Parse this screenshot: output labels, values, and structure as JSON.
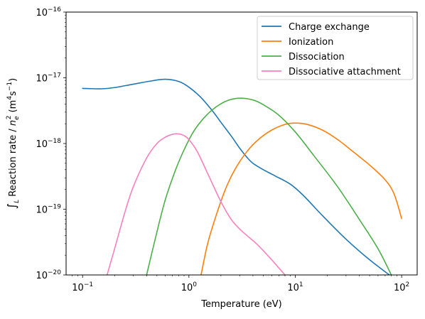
{
  "chart_data": {
    "type": "line",
    "title": "",
    "xlabel": "Temperature (eV)",
    "ylabel": {
      "integral": "∫",
      "subscript": "L",
      "text1": " Reaction rate / ",
      "n": "n",
      "n_sub": "e",
      "n_sup": "2",
      "text2": " (m",
      "m_sup": "4",
      "s": "s",
      "s_sup": "−1",
      "close": ")"
    },
    "xscale": "log",
    "yscale": "log",
    "xlim": [
      0.07,
      140
    ],
    "ylim": [
      1e-20,
      1e-16
    ],
    "grid": false,
    "legend_position": "top-right",
    "xticks": [
      {
        "value": 0.1,
        "base": "10",
        "exp": "−1"
      },
      {
        "value": 1,
        "base": "10",
        "exp": "0"
      },
      {
        "value": 10,
        "base": "10",
        "exp": "1"
      },
      {
        "value": 100,
        "base": "10",
        "exp": "2"
      }
    ],
    "yticks": [
      {
        "value": 1e-20,
        "base": "10",
        "exp": "−20"
      },
      {
        "value": 1e-19,
        "base": "10",
        "exp": "−19"
      },
      {
        "value": 1e-18,
        "base": "10",
        "exp": "−18"
      },
      {
        "value": 1e-17,
        "base": "10",
        "exp": "−17"
      },
      {
        "value": 1e-16,
        "base": "10",
        "exp": "−16"
      }
    ],
    "series": [
      {
        "name": "Charge exchange",
        "color": "#1f77b4",
        "x": [
          0.1,
          0.15,
          0.2,
          0.3,
          0.45,
          0.6,
          0.8,
          1.0,
          1.3,
          1.7,
          2.0,
          2.5,
          3.0,
          3.5,
          4.0,
          5.0,
          6.5,
          9.0,
          12.0,
          18.0,
          30.0,
          50.0,
          80.0
        ],
        "y": [
          6.9e-18,
          6.8e-18,
          7.1e-18,
          8e-18,
          9e-18,
          9.5e-18,
          8.8e-18,
          7.2e-18,
          5e-18,
          3e-18,
          2.1e-18,
          1.3e-18,
          8.5e-19,
          6.2e-19,
          5e-19,
          4e-19,
          3.2e-19,
          2.4e-19,
          1.6e-19,
          8e-20,
          3.5e-20,
          1.7e-20,
          9.5e-21
        ]
      },
      {
        "name": "Ionization",
        "color": "#ff7f0e",
        "x": [
          1.3,
          1.5,
          1.8,
          2.2,
          2.7,
          3.5,
          4.5,
          6.0,
          8.0,
          10.0,
          13.0,
          18.0,
          25.0,
          35.0,
          50.0,
          70.0,
          85.0,
          100.0
        ],
        "y": [
          1e-20,
          3e-20,
          8e-20,
          2e-19,
          4e-19,
          7.5e-19,
          1.15e-18,
          1.6e-18,
          1.95e-18,
          2.05e-18,
          1.95e-18,
          1.6e-18,
          1.15e-18,
          7.5e-19,
          4.7e-19,
          2.8e-19,
          1.7e-19,
          7.2e-20
        ]
      },
      {
        "name": "Dissociation",
        "color": "#4daf4a",
        "x": [
          0.4,
          0.5,
          0.6,
          0.75,
          0.9,
          1.1,
          1.4,
          1.8,
          2.3,
          3.0,
          4.0,
          5.0,
          7.0,
          10.0,
          15.0,
          25.0,
          40.0,
          60.0,
          80.0
        ],
        "y": [
          1e-20,
          4.5e-20,
          1.4e-19,
          4e-19,
          8e-19,
          1.5e-18,
          2.5e-18,
          3.6e-18,
          4.5e-18,
          4.9e-18,
          4.6e-18,
          3.9e-18,
          2.7e-18,
          1.5e-18,
          6.5e-19,
          2.2e-19,
          7e-20,
          2.5e-20,
          1e-20
        ]
      },
      {
        "name": "Dissociative attachment",
        "color": "#f781bf",
        "x": [
          0.17,
          0.2,
          0.25,
          0.3,
          0.4,
          0.5,
          0.6,
          0.7,
          0.8,
          0.9,
          1.0,
          1.2,
          1.5,
          2.0,
          2.5,
          3.0,
          3.5,
          4.5,
          6.0,
          8.0
        ],
        "y": [
          1e-20,
          2.5e-20,
          9e-20,
          2.2e-19,
          6e-19,
          1e-18,
          1.25e-18,
          1.38e-18,
          1.4e-18,
          1.32e-18,
          1.15e-18,
          7.5e-19,
          3.5e-19,
          1.3e-19,
          7e-20,
          5e-20,
          4e-20,
          2.8e-20,
          1.7e-20,
          1e-20
        ]
      }
    ]
  }
}
